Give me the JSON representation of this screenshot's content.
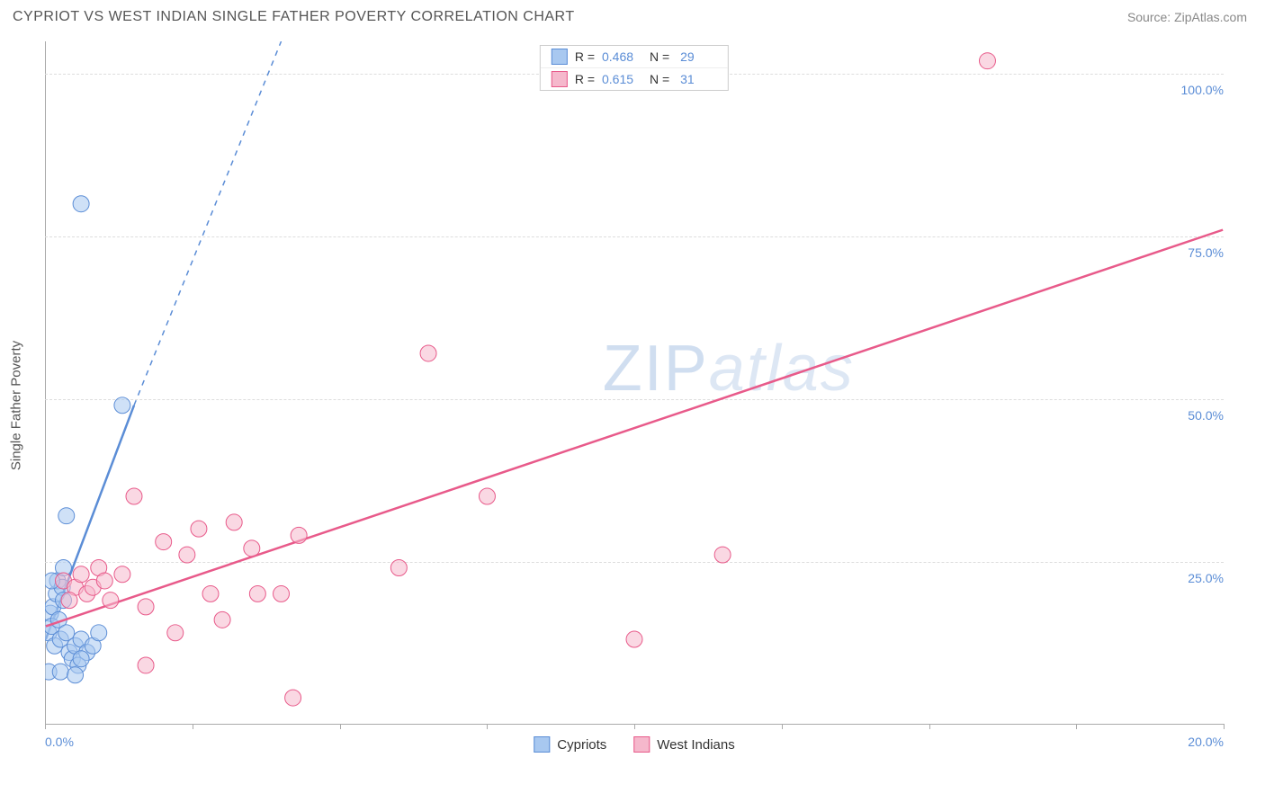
{
  "title": "CYPRIOT VS WEST INDIAN SINGLE FATHER POVERTY CORRELATION CHART",
  "source_label": "Source: ZipAtlas.com",
  "ylabel": "Single Father Poverty",
  "watermark": {
    "part1": "ZIP",
    "part2": "atlas"
  },
  "chart": {
    "type": "scatter",
    "xlim": [
      0,
      20
    ],
    "ylim": [
      0,
      105
    ],
    "x_ticks": [
      0,
      2.5,
      5,
      7.5,
      10,
      12.5,
      15,
      17.5,
      20
    ],
    "x_tick_labels_shown": {
      "0": "0.0%",
      "20": "20.0%"
    },
    "y_gridlines": [
      25,
      50,
      75,
      100
    ],
    "y_labels": {
      "25": "25.0%",
      "50": "50.0%",
      "75": "75.0%",
      "100": "100.0%"
    },
    "background_color": "#ffffff",
    "grid_color": "#dddddd",
    "axis_color": "#aaaaaa",
    "label_color": "#5b8dd6",
    "series": [
      {
        "name": "Cypriots",
        "color_fill": "#a8c8f0",
        "color_stroke": "#5b8dd6",
        "marker_radius": 9,
        "fill_opacity": 0.55,
        "R": 0.468,
        "N": 29,
        "trend": {
          "x1": 0,
          "y1": 13,
          "x2_solid": 1.5,
          "y2_solid": 49,
          "x2_dash": 4.0,
          "y2_dash": 105,
          "width": 2.5
        },
        "points": [
          [
            0.05,
            14
          ],
          [
            0.08,
            17
          ],
          [
            0.1,
            15
          ],
          [
            0.12,
            18
          ],
          [
            0.15,
            12
          ],
          [
            0.18,
            20
          ],
          [
            0.2,
            22
          ],
          [
            0.22,
            16
          ],
          [
            0.25,
            13
          ],
          [
            0.28,
            21
          ],
          [
            0.3,
            19
          ],
          [
            0.35,
            14
          ],
          [
            0.4,
            11
          ],
          [
            0.45,
            10
          ],
          [
            0.5,
            12
          ],
          [
            0.55,
            9
          ],
          [
            0.6,
            13
          ],
          [
            0.7,
            11
          ],
          [
            0.8,
            12
          ],
          [
            0.9,
            14
          ],
          [
            0.35,
            32
          ],
          [
            0.1,
            22
          ],
          [
            0.3,
            24
          ],
          [
            0.05,
            8
          ],
          [
            0.25,
            8
          ],
          [
            0.5,
            7.5
          ],
          [
            0.6,
            10
          ],
          [
            1.3,
            49
          ],
          [
            0.6,
            80
          ]
        ]
      },
      {
        "name": "West Indians",
        "color_fill": "#f5b8cc",
        "color_stroke": "#e85a8a",
        "marker_radius": 9,
        "fill_opacity": 0.55,
        "R": 0.615,
        "N": 31,
        "trend": {
          "x1": 0,
          "y1": 15,
          "x2_solid": 20,
          "y2_solid": 76,
          "width": 2.5
        },
        "points": [
          [
            0.3,
            22
          ],
          [
            0.5,
            21
          ],
          [
            0.7,
            20
          ],
          [
            0.9,
            24
          ],
          [
            1.1,
            19
          ],
          [
            1.3,
            23
          ],
          [
            1.5,
            35
          ],
          [
            1.7,
            18
          ],
          [
            2.0,
            28
          ],
          [
            2.2,
            14
          ],
          [
            2.4,
            26
          ],
          [
            2.6,
            30
          ],
          [
            2.8,
            20
          ],
          [
            3.2,
            31
          ],
          [
            3.0,
            16
          ],
          [
            3.5,
            27
          ],
          [
            3.6,
            20
          ],
          [
            4.3,
            29
          ],
          [
            4.0,
            20
          ],
          [
            4.2,
            4
          ],
          [
            1.7,
            9
          ],
          [
            6.5,
            57
          ],
          [
            6.0,
            24
          ],
          [
            7.5,
            35
          ],
          [
            10.0,
            13
          ],
          [
            11.5,
            26
          ],
          [
            16.0,
            102
          ],
          [
            0.4,
            19
          ],
          [
            0.6,
            23
          ],
          [
            0.8,
            21
          ],
          [
            1.0,
            22
          ]
        ]
      }
    ],
    "legend_bottom": [
      {
        "label": "Cypriots",
        "fill": "#a8c8f0",
        "stroke": "#5b8dd6"
      },
      {
        "label": "West Indians",
        "fill": "#f5b8cc",
        "stroke": "#e85a8a"
      }
    ]
  }
}
